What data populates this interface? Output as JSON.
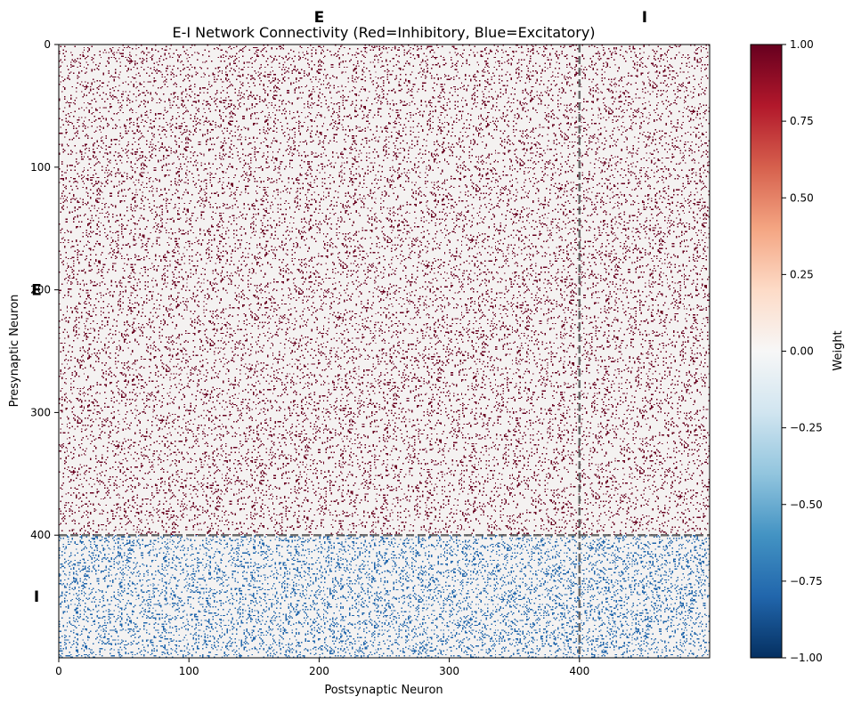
{
  "chart_data": {
    "type": "heatmap",
    "title": "E-I Network Connectivity (Red=Inhibitory, Blue=Excitatory)",
    "xlabel": "Postsynaptic Neuron",
    "ylabel": "Presynaptic Neuron",
    "colorbar_label": "Weight",
    "n_post": 500,
    "n_pre": 500,
    "xlim": [
      0,
      500
    ],
    "ylim": [
      500,
      0
    ],
    "xticks": [
      0,
      100,
      200,
      300,
      400
    ],
    "yticks": [
      0,
      100,
      200,
      300,
      400
    ],
    "colorbar_range": [
      -1.0,
      1.0
    ],
    "colorbar_ticks": [
      "1.00",
      "0.75",
      "0.50",
      "0.25",
      "0.00",
      "−0.25",
      "−0.50",
      "−0.75",
      "−1.00"
    ],
    "colorbar_tick_values": [
      1.0,
      0.75,
      0.5,
      0.25,
      0.0,
      -0.25,
      -0.5,
      -0.75,
      -1.0
    ],
    "colormap": "RdBu_r",
    "colormap_stops": [
      "#053061",
      "#2166ac",
      "#4393c3",
      "#92c5de",
      "#d1e5f0",
      "#f7f7f7",
      "#fddbc7",
      "#f4a582",
      "#d6604d",
      "#b2182b",
      "#67001f"
    ],
    "boundary": 400,
    "blocks": [
      {
        "pre_range": [
          0,
          400
        ],
        "weight": 1.0,
        "density": 0.1
      },
      {
        "pre_range": [
          400,
          500
        ],
        "weight": -0.8,
        "density": 0.15
      }
    ],
    "population_labels": {
      "top": [
        {
          "text": "E",
          "at": 200
        },
        {
          "text": "I",
          "at": 450
        }
      ],
      "left": [
        {
          "text": "E",
          "at": 200
        },
        {
          "text": "I",
          "at": 450
        }
      ]
    },
    "background_color": "#f4f2f1",
    "boundary_line_color": "#555555"
  }
}
